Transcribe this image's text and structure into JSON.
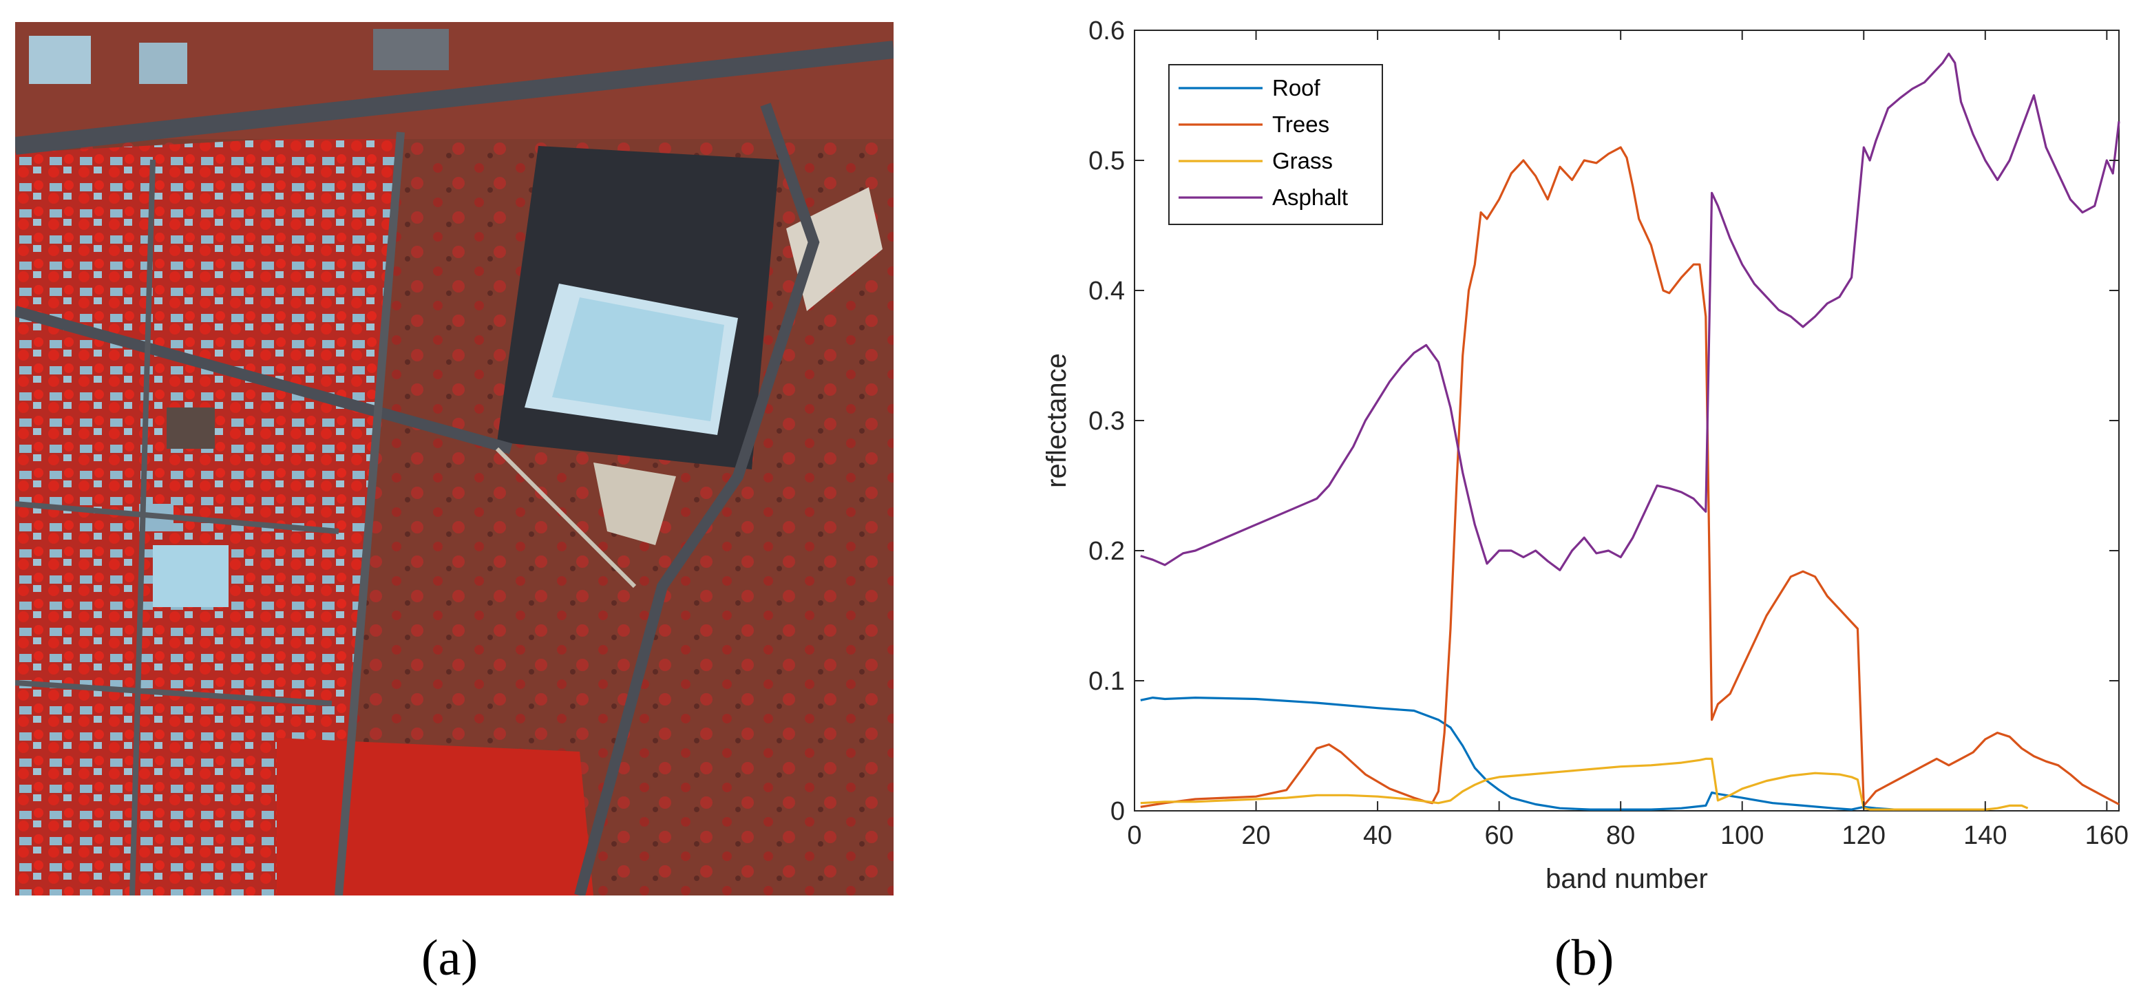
{
  "panel_a": {
    "caption": "(a)",
    "colors": {
      "vegetation": "#c4231c",
      "soil": "#7a3a2c",
      "road": "#3b3f48",
      "roof": "#a9d4e6",
      "parking": "#2c2f36"
    }
  },
  "panel_b": {
    "caption": "(b)"
  },
  "chart_data": {
    "type": "line",
    "title": "",
    "xlabel": "band number",
    "ylabel": "reflectance",
    "xlim": [
      0,
      162
    ],
    "ylim": [
      0,
      0.6
    ],
    "xticks": [
      "0",
      "20",
      "40",
      "60",
      "80",
      "100",
      "120",
      "140",
      "160"
    ],
    "yticks": [
      "0",
      "0.1",
      "0.2",
      "0.3",
      "0.4",
      "0.5",
      "0.6"
    ],
    "legend_position": "top-left",
    "series": [
      {
        "name": "Roof",
        "color": "#0072bd",
        "x": [
          1,
          3,
          5,
          10,
          20,
          30,
          40,
          46,
          50,
          52,
          54,
          56,
          58,
          60,
          62,
          66,
          70,
          75,
          80,
          85,
          90,
          94,
          95,
          96,
          100,
          105,
          110,
          115,
          118,
          120,
          122,
          125
        ],
        "y": [
          0.085,
          0.087,
          0.086,
          0.087,
          0.086,
          0.083,
          0.079,
          0.077,
          0.07,
          0.064,
          0.05,
          0.033,
          0.023,
          0.016,
          0.01,
          0.005,
          0.002,
          0.001,
          0.001,
          0.001,
          0.002,
          0.004,
          0.014,
          0.013,
          0.01,
          0.006,
          0.004,
          0.002,
          0.001,
          0.003,
          0.002,
          0.001
        ]
      },
      {
        "name": "Trees",
        "color": "#d95319",
        "x": [
          1,
          5,
          10,
          15,
          20,
          25,
          28,
          30,
          32,
          34,
          38,
          42,
          46,
          48,
          49,
          50,
          51,
          52,
          53,
          54,
          55,
          56,
          57,
          58,
          60,
          62,
          64,
          66,
          68,
          70,
          72,
          74,
          76,
          78,
          80,
          81,
          82,
          83,
          85,
          87,
          88,
          90,
          92,
          93,
          94,
          95,
          96,
          98,
          100,
          102,
          104,
          106,
          108,
          110,
          112,
          114,
          116,
          118,
          119,
          120,
          122,
          124,
          126,
          128,
          130,
          132,
          134,
          136,
          138,
          140,
          142,
          144,
          146,
          148,
          150,
          152,
          154,
          156,
          158,
          160,
          162
        ],
        "y": [
          0.003,
          0.006,
          0.009,
          0.01,
          0.011,
          0.016,
          0.035,
          0.048,
          0.051,
          0.045,
          0.028,
          0.017,
          0.01,
          0.007,
          0.006,
          0.015,
          0.06,
          0.14,
          0.25,
          0.35,
          0.4,
          0.42,
          0.46,
          0.455,
          0.47,
          0.49,
          0.5,
          0.488,
          0.47,
          0.495,
          0.485,
          0.5,
          0.498,
          0.505,
          0.51,
          0.502,
          0.48,
          0.455,
          0.435,
          0.4,
          0.398,
          0.41,
          0.42,
          0.42,
          0.38,
          0.07,
          0.082,
          0.09,
          0.11,
          0.13,
          0.15,
          0.165,
          0.18,
          0.184,
          0.18,
          0.165,
          0.155,
          0.145,
          0.14,
          0.004,
          0.015,
          0.02,
          0.025,
          0.03,
          0.035,
          0.04,
          0.035,
          0.04,
          0.045,
          0.055,
          0.06,
          0.057,
          0.048,
          0.042,
          0.038,
          0.035,
          0.028,
          0.02,
          0.015,
          0.01,
          0.005
        ]
      },
      {
        "name": "Grass",
        "color": "#edb120",
        "x": [
          1,
          5,
          10,
          15,
          20,
          25,
          30,
          35,
          40,
          45,
          50,
          52,
          54,
          56,
          58,
          60,
          65,
          70,
          75,
          80,
          85,
          90,
          93,
          94,
          95,
          96,
          98,
          100,
          104,
          108,
          112,
          116,
          118,
          119,
          120,
          121,
          140,
          142,
          144,
          146,
          147
        ],
        "y": [
          0.006,
          0.007,
          0.007,
          0.008,
          0.009,
          0.01,
          0.012,
          0.012,
          0.011,
          0.009,
          0.006,
          0.008,
          0.015,
          0.02,
          0.024,
          0.026,
          0.028,
          0.03,
          0.032,
          0.034,
          0.035,
          0.037,
          0.039,
          0.04,
          0.04,
          0.008,
          0.012,
          0.017,
          0.023,
          0.027,
          0.029,
          0.028,
          0.026,
          0.024,
          0.002,
          0.001,
          0.001,
          0.002,
          0.004,
          0.004,
          0.002
        ]
      },
      {
        "name": "Asphalt",
        "color": "#7e2f8e",
        "x": [
          1,
          3,
          5,
          8,
          10,
          15,
          20,
          25,
          30,
          32,
          34,
          36,
          38,
          40,
          42,
          44,
          46,
          48,
          50,
          52,
          54,
          56,
          58,
          60,
          62,
          64,
          66,
          68,
          70,
          72,
          74,
          76,
          78,
          80,
          82,
          84,
          86,
          88,
          90,
          92,
          93,
          94,
          95,
          96,
          98,
          100,
          102,
          104,
          106,
          108,
          110,
          112,
          114,
          116,
          118,
          120,
          121,
          122,
          124,
          126,
          128,
          130,
          132,
          133,
          134,
          135,
          136,
          138,
          140,
          142,
          144,
          146,
          148,
          150,
          152,
          154,
          156,
          158,
          160,
          161,
          162
        ],
        "y": [
          0.196,
          0.193,
          0.189,
          0.198,
          0.2,
          0.21,
          0.22,
          0.23,
          0.24,
          0.25,
          0.265,
          0.28,
          0.3,
          0.315,
          0.33,
          0.342,
          0.352,
          0.358,
          0.345,
          0.31,
          0.26,
          0.22,
          0.19,
          0.2,
          0.2,
          0.195,
          0.2,
          0.192,
          0.185,
          0.2,
          0.21,
          0.198,
          0.2,
          0.195,
          0.21,
          0.23,
          0.25,
          0.248,
          0.245,
          0.24,
          0.235,
          0.23,
          0.475,
          0.465,
          0.44,
          0.42,
          0.405,
          0.395,
          0.385,
          0.38,
          0.372,
          0.38,
          0.39,
          0.395,
          0.41,
          0.51,
          0.5,
          0.515,
          0.54,
          0.548,
          0.555,
          0.56,
          0.57,
          0.575,
          0.582,
          0.575,
          0.545,
          0.52,
          0.5,
          0.485,
          0.5,
          0.525,
          0.55,
          0.51,
          0.49,
          0.47,
          0.46,
          0.465,
          0.5,
          0.49,
          0.53
        ]
      }
    ]
  }
}
